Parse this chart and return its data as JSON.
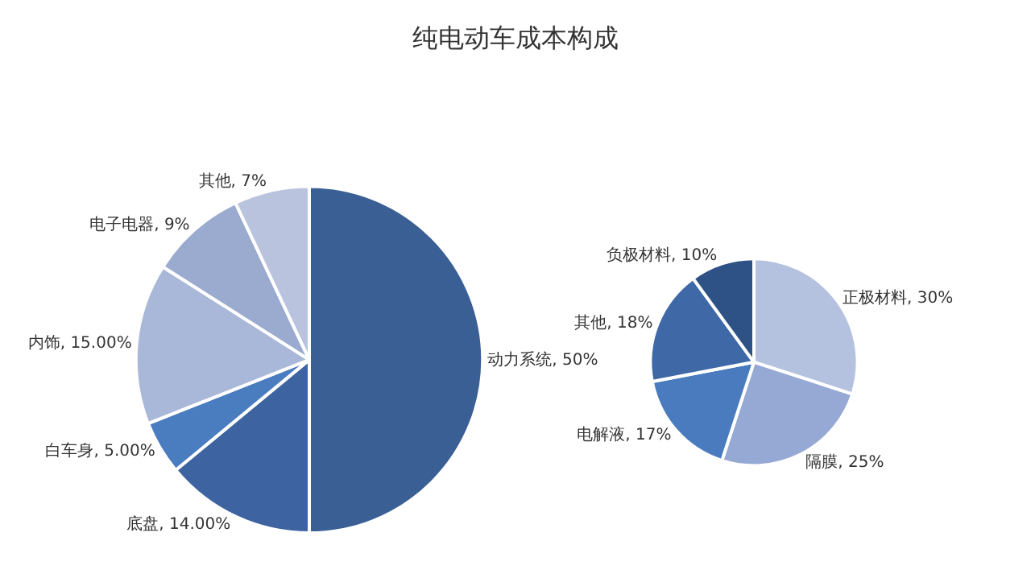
{
  "chart_data": [
    {
      "type": "pie",
      "title": "纯电动车成本构成",
      "categories": [
        "动力系统",
        "底盘",
        "白车身",
        "内饰",
        "电子电器",
        "其他"
      ],
      "values": [
        50,
        14,
        5,
        15,
        9,
        7
      ],
      "value_labels": [
        "50%",
        "14.00%",
        "5.00%",
        "15.00%",
        "9%",
        "7%"
      ],
      "colors": [
        "#3a5f95",
        "#3d64a0",
        "#4a7cc0",
        "#a9b7d8",
        "#9aabcf",
        "#b9c3dd"
      ]
    },
    {
      "type": "pie",
      "categories": [
        "正极材料",
        "隔膜",
        "电解液",
        "其他",
        "负极材料"
      ],
      "values": [
        30,
        25,
        17,
        18,
        10
      ],
      "value_labels": [
        "30%",
        "25%",
        "17%",
        "18%",
        "10%"
      ],
      "colors": [
        "#b4c2e0",
        "#95a9d4",
        "#4a7bbf",
        "#3e68a6",
        "#2f5286"
      ]
    }
  ]
}
